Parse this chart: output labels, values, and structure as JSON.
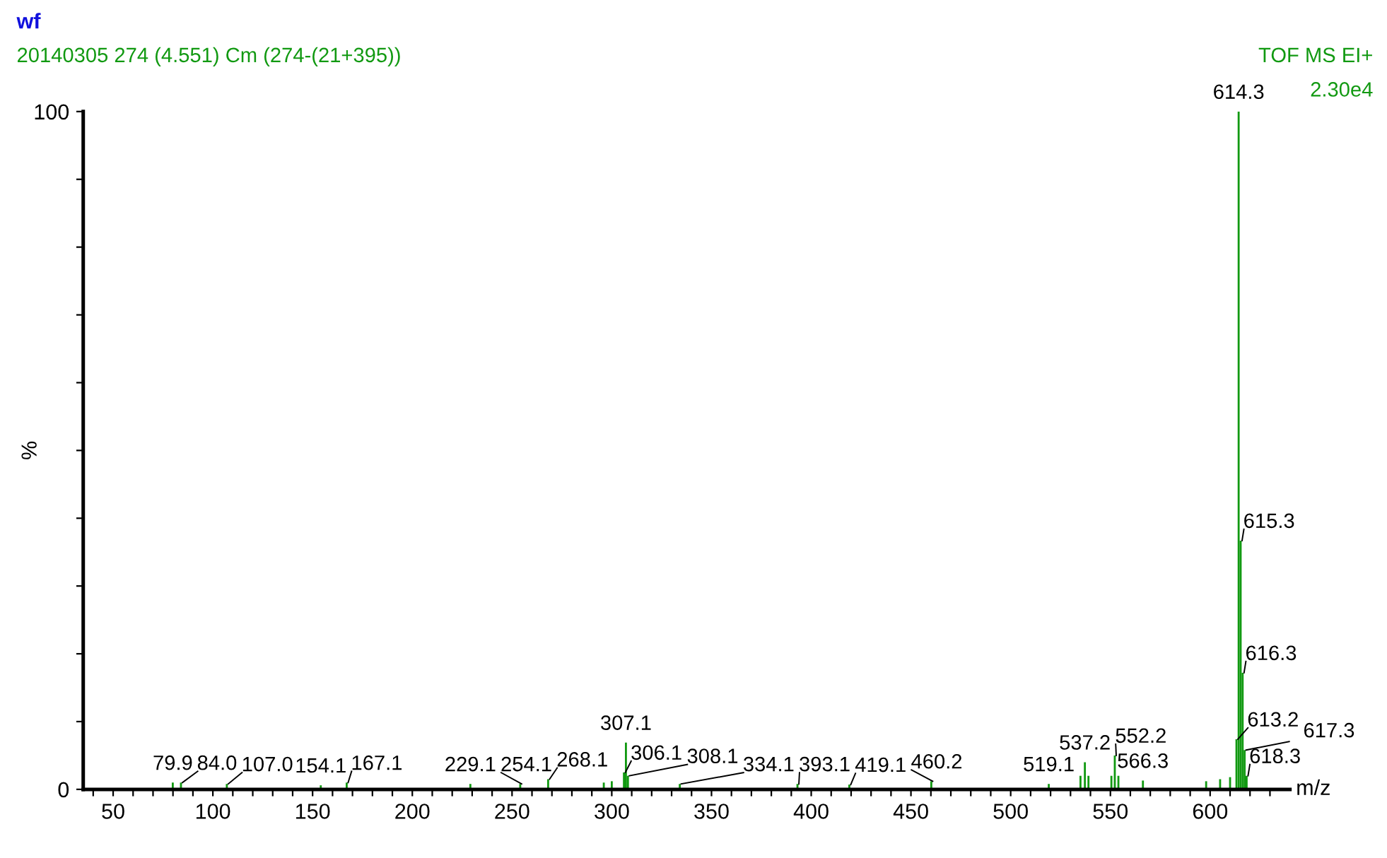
{
  "chart_data": {
    "type": "bar",
    "title": "wf",
    "subtitle": "20140305 274 (4.551) Cm (274-(21+395))",
    "annotations": [
      "TOF MS EI+",
      "2.30e4",
      {
        "text": "79.9",
        "x": 79.9,
        "y": 1.0
      },
      {
        "text": "84.0",
        "x": 84.0,
        "y": 1.0
      },
      {
        "text": "107.0",
        "x": 107.0,
        "y": 0.8
      },
      {
        "text": "154.1",
        "x": 154.1,
        "y": 0.6
      },
      {
        "text": "167.1",
        "x": 167.1,
        "y": 1.0
      },
      {
        "text": "229.1",
        "x": 229.1,
        "y": 0.8
      },
      {
        "text": "254.1",
        "x": 254.1,
        "y": 0.8
      },
      {
        "text": "268.1",
        "x": 268.1,
        "y": 1.5
      },
      {
        "text": "306.1",
        "x": 306.1,
        "y": 2.5
      },
      {
        "text": "307.1",
        "x": 307.1,
        "y": 6.9
      },
      {
        "text": "308.1",
        "x": 308.1,
        "y": 2.0
      },
      {
        "text": "334.1",
        "x": 334.1,
        "y": 0.8
      },
      {
        "text": "393.1",
        "x": 393.1,
        "y": 0.8
      },
      {
        "text": "419.1",
        "x": 419.1,
        "y": 0.7
      },
      {
        "text": "460.2",
        "x": 460.2,
        "y": 1.2
      },
      {
        "text": "519.1",
        "x": 519.1,
        "y": 0.8
      },
      {
        "text": "537.2",
        "x": 537.2,
        "y": 4.0
      },
      {
        "text": "552.2",
        "x": 552.2,
        "y": 5.0
      },
      {
        "text": "566.3",
        "x": 566.3,
        "y": 1.3
      },
      {
        "text": "613.2",
        "x": 613.2,
        "y": 7.4
      },
      {
        "text": "614.3",
        "x": 614.3,
        "y": 100
      },
      {
        "text": "615.3",
        "x": 615.3,
        "y": 36.7
      },
      {
        "text": "616.3",
        "x": 616.3,
        "y": 17.2
      },
      {
        "text": "617.3",
        "x": 617.3,
        "y": 5.8
      },
      {
        "text": "618.3",
        "x": 618.3,
        "y": 2.0
      }
    ],
    "xlabel": "m/z",
    "ylabel": "%",
    "x": [
      79.9,
      84.0,
      107.0,
      154.1,
      167.1,
      229.1,
      254.1,
      268.1,
      296.0,
      300.0,
      306.1,
      307.1,
      308.1,
      334.1,
      393.1,
      419.1,
      460.2,
      519.1,
      535.0,
      537.2,
      539.0,
      550.5,
      552.2,
      554.0,
      566.3,
      598.0,
      605.0,
      610.0,
      613.2,
      614.3,
      615.3,
      616.3,
      617.3,
      618.3
    ],
    "values": [
      1.0,
      1.0,
      0.8,
      0.6,
      1.0,
      0.8,
      0.8,
      1.5,
      1.0,
      1.2,
      2.5,
      6.9,
      2.0,
      0.8,
      0.8,
      0.7,
      1.2,
      0.8,
      2.0,
      4.0,
      2.0,
      2.0,
      5.0,
      2.0,
      1.3,
      1.2,
      1.5,
      1.8,
      7.4,
      100,
      36.7,
      17.2,
      5.8,
      2.0
    ],
    "color": "#119911",
    "xlim": [
      35,
      640
    ],
    "ylim": [
      0,
      100
    ],
    "xticks": [
      {
        "value": 40,
        "label": null
      },
      50,
      {
        "value": 60,
        "label": null
      },
      {
        "value": 70,
        "label": null
      },
      {
        "value": 80,
        "label": null
      },
      {
        "value": 90,
        "label": null
      },
      100,
      {
        "value": 110,
        "label": null
      },
      {
        "value": 120,
        "label": null
      },
      {
        "value": 130,
        "label": null
      },
      {
        "value": 140,
        "label": null
      },
      150,
      {
        "value": 160,
        "label": null
      },
      {
        "value": 170,
        "label": null
      },
      {
        "value": 180,
        "label": null
      },
      {
        "value": 190,
        "label": null
      },
      200,
      {
        "value": 210,
        "label": null
      },
      {
        "value": 220,
        "label": null
      },
      {
        "value": 230,
        "label": null
      },
      {
        "value": 240,
        "label": null
      },
      250,
      {
        "value": 260,
        "label": null
      },
      {
        "value": 270,
        "label": null
      },
      {
        "value": 280,
        "label": null
      },
      {
        "value": 290,
        "label": null
      },
      300,
      {
        "value": 310,
        "label": null
      },
      {
        "value": 320,
        "label": null
      },
      {
        "value": 330,
        "label": null
      },
      {
        "value": 340,
        "label": null
      },
      350,
      {
        "value": 360,
        "label": null
      },
      {
        "value": 370,
        "label": null
      },
      {
        "value": 380,
        "label": null
      },
      {
        "value": 390,
        "label": null
      },
      400,
      {
        "value": 410,
        "label": null
      },
      {
        "value": 420,
        "label": null
      },
      {
        "value": 430,
        "label": null
      },
      {
        "value": 440,
        "label": null
      },
      450,
      {
        "value": 460,
        "label": null
      },
      {
        "value": 470,
        "label": null
      },
      {
        "value": 480,
        "label": null
      },
      {
        "value": 490,
        "label": null
      },
      500,
      {
        "value": 510,
        "label": null
      },
      {
        "value": 520,
        "label": null
      },
      {
        "value": 530,
        "label": null
      },
      {
        "value": 540,
        "label": null
      },
      550,
      {
        "value": 560,
        "label": null
      },
      {
        "value": 570,
        "label": null
      },
      {
        "value": 580,
        "label": null
      },
      {
        "value": 590,
        "label": null
      },
      600,
      {
        "value": 610,
        "label": null
      },
      {
        "value": 620,
        "label": null
      },
      {
        "value": 630,
        "label": null
      }
    ],
    "yticks": [
      0,
      {
        "value": 10,
        "label": null
      },
      {
        "value": 20,
        "label": null
      },
      {
        "value": 30,
        "label": null
      },
      {
        "value": 40,
        "label": null
      },
      {
        "value": 50,
        "label": null
      },
      {
        "value": 60,
        "label": null
      },
      {
        "value": 70,
        "label": null
      },
      {
        "value": 80,
        "label": null
      },
      {
        "value": 90,
        "label": null
      },
      100
    ],
    "grid": false
  }
}
